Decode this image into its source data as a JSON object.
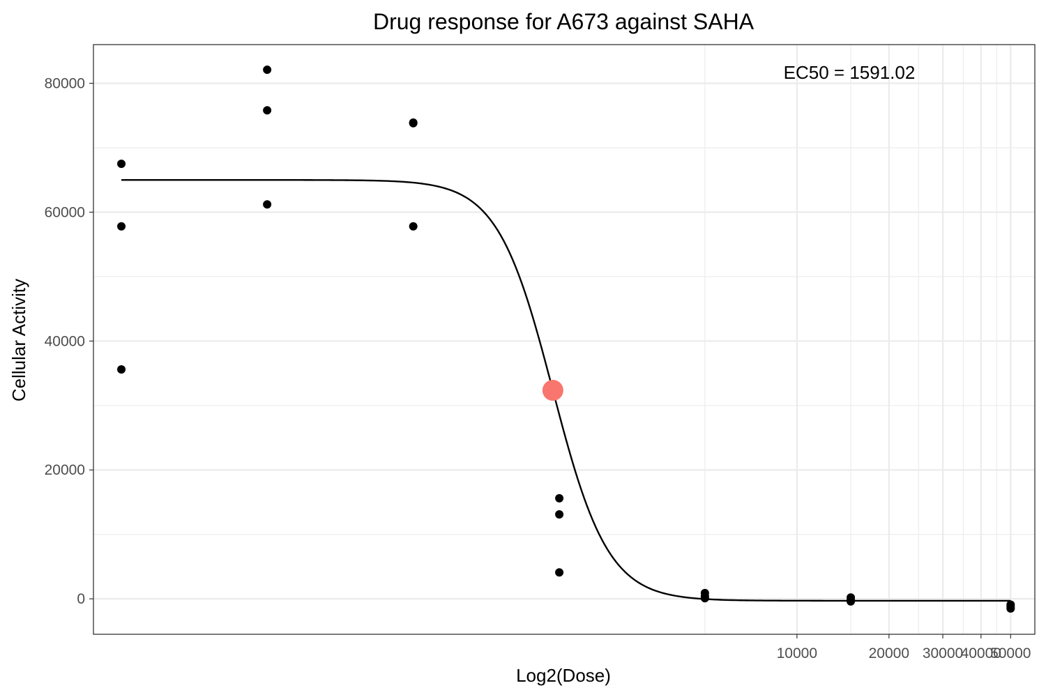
{
  "chart_data": {
    "type": "scatter",
    "title": "Drug response for A673 against SAHA",
    "xlabel": "Log2(Dose)",
    "ylabel": "Cellular Activity",
    "x_scale": "log10",
    "xlim": [
      50,
      60000
    ],
    "ylim": [
      -5500,
      86000
    ],
    "x_ticks": [
      10000,
      20000,
      30000,
      40000,
      50000
    ],
    "x_tick_labels": [
      "10000",
      "20000",
      "30000",
      "40000",
      "50000"
    ],
    "x_minor_gridlines": [
      5000,
      15000,
      25000,
      35000,
      45000
    ],
    "y_ticks": [
      0,
      20000,
      40000,
      60000,
      80000
    ],
    "y_tick_labels": [
      "0",
      "20000",
      "40000",
      "60000",
      "80000"
    ],
    "y_minor_gridlines": [
      10000,
      30000,
      50000,
      70000
    ],
    "grid": true,
    "points": [
      {
        "dose": 61.7,
        "activity": 67500
      },
      {
        "dose": 61.7,
        "activity": 57800
      },
      {
        "dose": 61.7,
        "activity": 35600
      },
      {
        "dose": 185,
        "activity": 82100
      },
      {
        "dose": 185,
        "activity": 75800
      },
      {
        "dose": 185,
        "activity": 61200
      },
      {
        "dose": 556,
        "activity": 73800
      },
      {
        "dose": 556,
        "activity": 73900
      },
      {
        "dose": 556,
        "activity": 57800
      },
      {
        "dose": 1670,
        "activity": 15600
      },
      {
        "dose": 1670,
        "activity": 13100
      },
      {
        "dose": 1670,
        "activity": 4100
      },
      {
        "dose": 5000,
        "activity": 900
      },
      {
        "dose": 5000,
        "activity": 400
      },
      {
        "dose": 5000,
        "activity": 100
      },
      {
        "dose": 15000,
        "activity": 200
      },
      {
        "dose": 15000,
        "activity": -200
      },
      {
        "dose": 15000,
        "activity": -400
      },
      {
        "dose": 50000,
        "activity": -900
      },
      {
        "dose": 50000,
        "activity": -1200
      },
      {
        "dose": 50000,
        "activity": -1500
      }
    ],
    "fit_curve": {
      "type": "hill",
      "top": 65000,
      "bottom": -300,
      "ec50": 1591.02,
      "hill_slope": 4.8,
      "x_range": [
        61.7,
        50000
      ]
    },
    "ec50_point": {
      "dose": 1591.02,
      "activity": 32350,
      "color": "#f8766d"
    },
    "annotation": "EC50 = 1591.02",
    "colors": {
      "points": "#000000",
      "curve": "#000000",
      "ec50": "#f8766d",
      "grid": "#ebebeb",
      "panel_border": "#333333"
    }
  }
}
